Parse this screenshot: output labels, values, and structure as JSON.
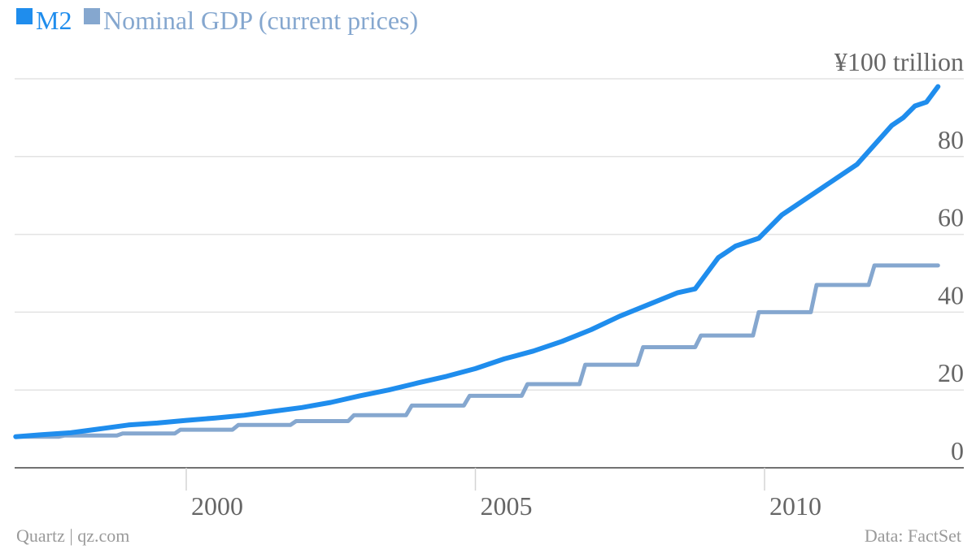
{
  "chart_data": {
    "type": "line",
    "x_unit": "year",
    "xlim": [
      1997.05,
      2013.0
    ],
    "ylim": [
      0,
      100
    ],
    "y_unit_label": "¥100 trillion",
    "x_ticks": [
      {
        "value": 2000,
        "label": "2000"
      },
      {
        "value": 2005,
        "label": "2005"
      },
      {
        "value": 2010,
        "label": "2010"
      }
    ],
    "y_ticks": [
      {
        "value": 0,
        "label": "0"
      },
      {
        "value": 20,
        "label": "20"
      },
      {
        "value": 40,
        "label": "40"
      },
      {
        "value": 60,
        "label": "60"
      },
      {
        "value": 80,
        "label": "80"
      },
      {
        "value": 100,
        "label": "¥100 trillion"
      }
    ],
    "grid": true,
    "legend_position": "top-left",
    "series": [
      {
        "name": "M2",
        "color": "#1f8ded",
        "step": false,
        "points": [
          [
            1997.05,
            8.0
          ],
          [
            1997.5,
            8.5
          ],
          [
            1998.0,
            9.0
          ],
          [
            1998.5,
            10.0
          ],
          [
            1999.0,
            11.0
          ],
          [
            1999.5,
            11.5
          ],
          [
            2000.0,
            12.2
          ],
          [
            2000.5,
            12.8
          ],
          [
            2001.0,
            13.5
          ],
          [
            2001.5,
            14.5
          ],
          [
            2002.0,
            15.5
          ],
          [
            2002.5,
            16.8
          ],
          [
            2003.0,
            18.5
          ],
          [
            2003.5,
            20.0
          ],
          [
            2004.0,
            21.8
          ],
          [
            2004.5,
            23.5
          ],
          [
            2005.0,
            25.5
          ],
          [
            2005.5,
            28.0
          ],
          [
            2006.0,
            30.0
          ],
          [
            2006.5,
            32.5
          ],
          [
            2007.0,
            35.5
          ],
          [
            2007.5,
            39.0
          ],
          [
            2008.0,
            42.0
          ],
          [
            2008.5,
            45.0
          ],
          [
            2008.8,
            46.0
          ],
          [
            2009.0,
            50.0
          ],
          [
            2009.2,
            54.0
          ],
          [
            2009.5,
            57.0
          ],
          [
            2009.9,
            59.0
          ],
          [
            2010.3,
            65.0
          ],
          [
            2010.6,
            68.0
          ],
          [
            2011.0,
            72.0
          ],
          [
            2011.4,
            76.0
          ],
          [
            2011.6,
            78.0
          ],
          [
            2011.9,
            83.0
          ],
          [
            2012.2,
            88.0
          ],
          [
            2012.4,
            90.0
          ],
          [
            2012.6,
            93.0
          ],
          [
            2012.8,
            94.0
          ],
          [
            2013.0,
            98.0
          ]
        ]
      },
      {
        "name": "Nominal GDP (current prices)",
        "color": "#85a7cf",
        "step": true,
        "points": [
          [
            1997.05,
            8.0
          ],
          [
            1997.9,
            8.3
          ],
          [
            1998.9,
            8.8
          ],
          [
            1999.9,
            9.8
          ],
          [
            2000.9,
            11.0
          ],
          [
            2001.9,
            12.0
          ],
          [
            2002.9,
            13.5
          ],
          [
            2003.9,
            16.0
          ],
          [
            2004.9,
            18.5
          ],
          [
            2005.9,
            21.5
          ],
          [
            2006.9,
            26.5
          ],
          [
            2007.9,
            31.0
          ],
          [
            2008.9,
            34.0
          ],
          [
            2009.9,
            40.0
          ],
          [
            2010.9,
            47.0
          ],
          [
            2011.9,
            52.0
          ],
          [
            2013.0,
            52.0
          ]
        ]
      }
    ]
  },
  "source": {
    "left": "Quartz | qz.com",
    "right": "Data: FactSet"
  }
}
